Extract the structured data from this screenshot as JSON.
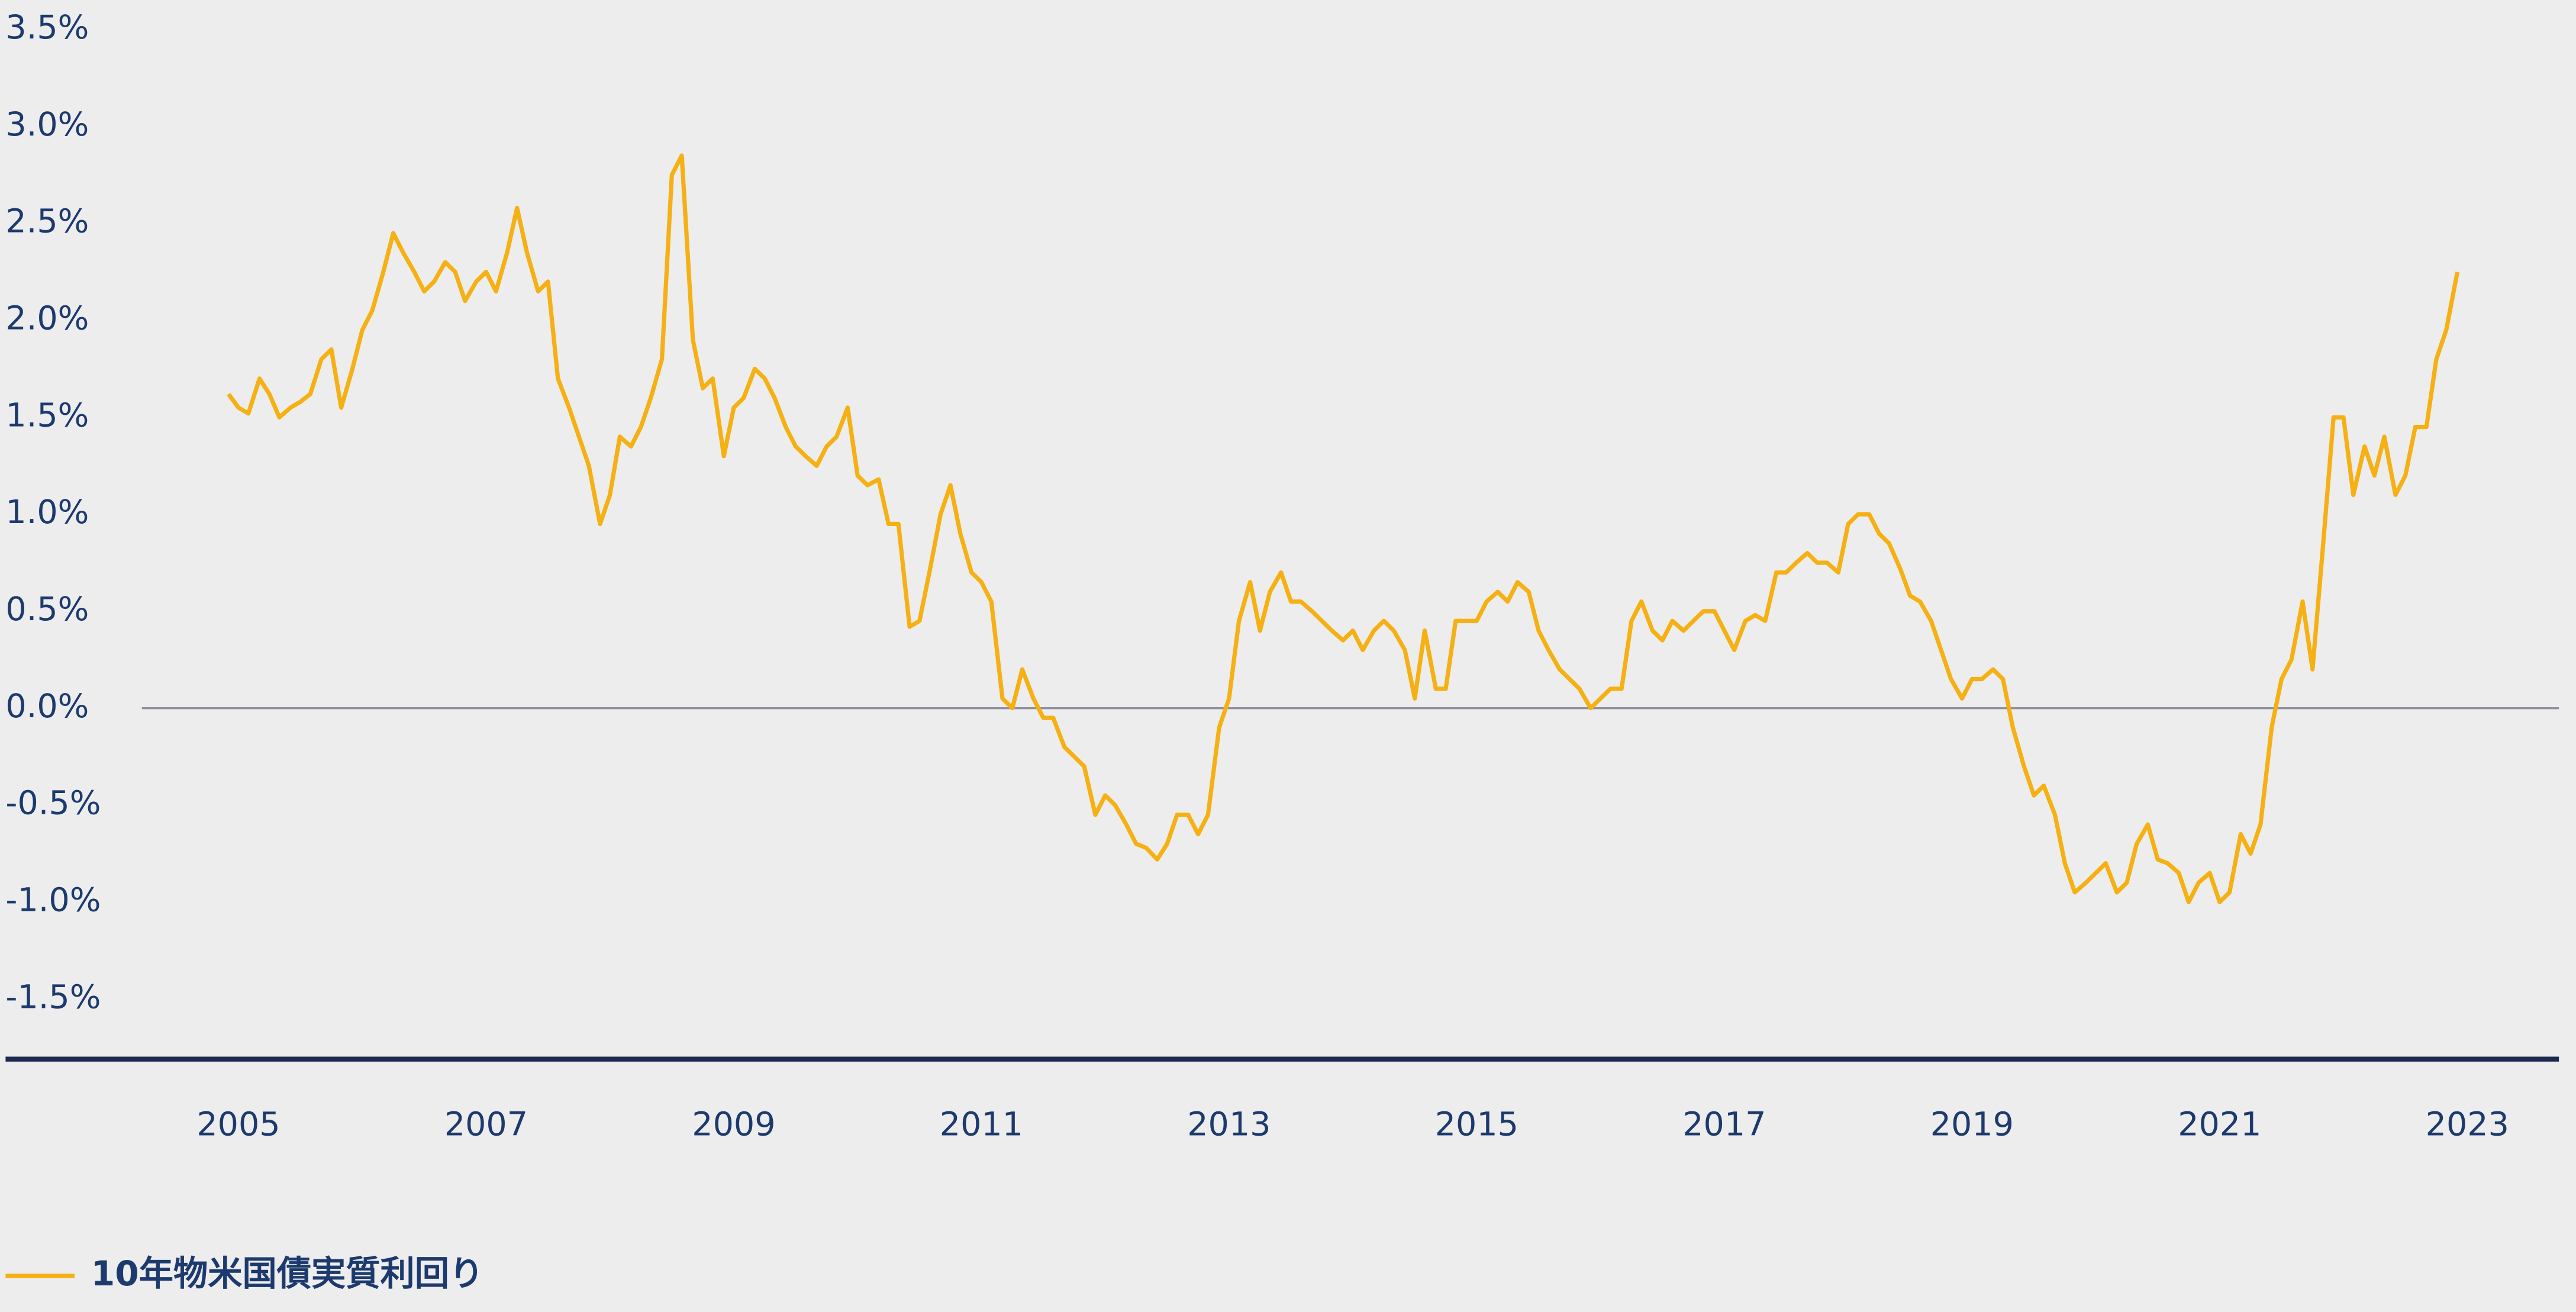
{
  "chart_data": {
    "type": "line",
    "x": [
      2004.92,
      2005.0,
      2005.08,
      2005.17,
      2005.25,
      2005.33,
      2005.42,
      2005.5,
      2005.58,
      2005.67,
      2005.75,
      2005.83,
      2005.92,
      2006.0,
      2006.08,
      2006.17,
      2006.25,
      2006.33,
      2006.42,
      2006.5,
      2006.58,
      2006.67,
      2006.75,
      2006.83,
      2006.92,
      2007.0,
      2007.08,
      2007.17,
      2007.25,
      2007.33,
      2007.42,
      2007.5,
      2007.58,
      2007.67,
      2007.75,
      2007.83,
      2007.92,
      2008.0,
      2008.08,
      2008.17,
      2008.25,
      2008.33,
      2008.42,
      2008.5,
      2008.58,
      2008.67,
      2008.75,
      2008.83,
      2008.92,
      2009.0,
      2009.08,
      2009.17,
      2009.25,
      2009.33,
      2009.42,
      2009.5,
      2009.58,
      2009.67,
      2009.75,
      2009.83,
      2009.92,
      2010.0,
      2010.08,
      2010.17,
      2010.25,
      2010.33,
      2010.42,
      2010.5,
      2010.58,
      2010.67,
      2010.75,
      2010.83,
      2010.92,
      2011.0,
      2011.08,
      2011.17,
      2011.25,
      2011.33,
      2011.42,
      2011.5,
      2011.58,
      2011.67,
      2011.75,
      2011.83,
      2011.92,
      2012.0,
      2012.08,
      2012.17,
      2012.25,
      2012.33,
      2012.42,
      2012.5,
      2012.58,
      2012.67,
      2012.75,
      2012.83,
      2012.92,
      2013.0,
      2013.08,
      2013.17,
      2013.25,
      2013.33,
      2013.42,
      2013.5,
      2013.58,
      2013.67,
      2013.75,
      2013.83,
      2013.92,
      2014.0,
      2014.08,
      2014.17,
      2014.25,
      2014.33,
      2014.42,
      2014.5,
      2014.58,
      2014.67,
      2014.75,
      2014.83,
      2014.92,
      2015.0,
      2015.08,
      2015.17,
      2015.25,
      2015.33,
      2015.42,
      2015.5,
      2015.58,
      2015.67,
      2015.75,
      2015.83,
      2015.92,
      2016.0,
      2016.08,
      2016.17,
      2016.25,
      2016.33,
      2016.42,
      2016.5,
      2016.58,
      2016.67,
      2016.75,
      2016.83,
      2016.92,
      2017.0,
      2017.08,
      2017.17,
      2017.25,
      2017.33,
      2017.42,
      2017.5,
      2017.58,
      2017.67,
      2017.75,
      2017.83,
      2017.92,
      2018.0,
      2018.08,
      2018.17,
      2018.25,
      2018.33,
      2018.42,
      2018.5,
      2018.58,
      2018.67,
      2018.75,
      2018.83,
      2018.92,
      2019.0,
      2019.08,
      2019.17,
      2019.25,
      2019.33,
      2019.42,
      2019.5,
      2019.58,
      2019.67,
      2019.75,
      2019.83,
      2019.92,
      2020.0,
      2020.08,
      2020.17,
      2020.25,
      2020.33,
      2020.42,
      2020.5,
      2020.58,
      2020.67,
      2020.75,
      2020.83,
      2020.92,
      2021.0,
      2021.08,
      2021.17,
      2021.25,
      2021.33,
      2021.42,
      2021.5,
      2021.58,
      2021.67,
      2021.75,
      2021.83,
      2021.92,
      2022.0,
      2022.08,
      2022.17,
      2022.25,
      2022.33,
      2022.42,
      2022.5,
      2022.58,
      2022.67,
      2022.75,
      2022.83,
      2022.92
    ],
    "series": [
      {
        "name": "10年物米国債実質利回り",
        "color": "#f5b014",
        "values": [
          1.62,
          1.55,
          1.52,
          1.7,
          1.62,
          1.5,
          1.55,
          1.58,
          1.62,
          1.8,
          1.85,
          1.55,
          1.75,
          1.95,
          2.05,
          2.25,
          2.45,
          2.35,
          2.25,
          2.15,
          2.2,
          2.3,
          2.25,
          2.1,
          2.2,
          2.25,
          2.15,
          2.35,
          2.58,
          2.35,
          2.15,
          2.2,
          1.7,
          1.55,
          1.4,
          1.25,
          0.95,
          1.1,
          1.4,
          1.35,
          1.45,
          1.6,
          1.8,
          2.75,
          2.85,
          1.9,
          1.65,
          1.7,
          1.3,
          1.55,
          1.6,
          1.75,
          1.7,
          1.6,
          1.45,
          1.35,
          1.3,
          1.25,
          1.35,
          1.4,
          1.55,
          1.2,
          1.15,
          1.18,
          0.95,
          0.95,
          0.42,
          0.45,
          0.7,
          1.0,
          1.15,
          0.9,
          0.7,
          0.65,
          0.55,
          0.05,
          0.0,
          0.2,
          0.05,
          -0.05,
          -0.05,
          -0.2,
          -0.25,
          -0.3,
          -0.55,
          -0.45,
          -0.5,
          -0.6,
          -0.7,
          -0.72,
          -0.78,
          -0.7,
          -0.55,
          -0.55,
          -0.65,
          -0.55,
          -0.1,
          0.05,
          0.45,
          0.65,
          0.4,
          0.6,
          0.7,
          0.55,
          0.55,
          0.5,
          0.45,
          0.4,
          0.35,
          0.4,
          0.3,
          0.4,
          0.45,
          0.4,
          0.3,
          0.05,
          0.4,
          0.1,
          0.1,
          0.45,
          0.45,
          0.45,
          0.55,
          0.6,
          0.55,
          0.65,
          0.6,
          0.4,
          0.3,
          0.2,
          0.15,
          0.1,
          0.0,
          0.05,
          0.1,
          0.1,
          0.45,
          0.55,
          0.4,
          0.35,
          0.45,
          0.4,
          0.45,
          0.5,
          0.5,
          0.4,
          0.3,
          0.45,
          0.48,
          0.45,
          0.7,
          0.7,
          0.75,
          0.8,
          0.75,
          0.75,
          0.7,
          0.95,
          1.0,
          1.0,
          0.9,
          0.85,
          0.72,
          0.58,
          0.55,
          0.45,
          0.3,
          0.15,
          0.05,
          0.15,
          0.15,
          0.2,
          0.15,
          -0.1,
          -0.3,
          -0.45,
          -0.4,
          -0.55,
          -0.8,
          -0.95,
          -0.9,
          -0.85,
          -0.8,
          -0.95,
          -0.9,
          -0.7,
          -0.6,
          -0.78,
          -0.8,
          -0.85,
          -1.0,
          -0.9,
          -0.85,
          -1.0,
          -0.95,
          -0.65,
          -0.75,
          -0.6,
          -0.1,
          0.15,
          0.25,
          0.55,
          0.2,
          0.8,
          1.5,
          1.5,
          1.1,
          1.35,
          1.2,
          1.4,
          1.1,
          1.2,
          1.45,
          1.45,
          1.8,
          1.95,
          2.25
        ]
      }
    ],
    "xlim": [
      2004.22,
      2023.74
    ],
    "xticks": [
      2005,
      2007,
      2009,
      2011,
      2013,
      2015,
      2017,
      2019,
      2021,
      2023
    ],
    "ylim": [
      -1.81,
      3.5
    ],
    "yticks": [
      {
        "value": -1.5,
        "label": "-1.5%"
      },
      {
        "value": -1.0,
        "label": "-1.0%"
      },
      {
        "value": -0.5,
        "label": "-0.5%"
      },
      {
        "value": 0,
        "label": "0.0%"
      },
      {
        "value": 0.5,
        "label": "0.5%"
      },
      {
        "value": 1.0,
        "label": "1.0%"
      },
      {
        "value": 1.5,
        "label": "1.5%"
      },
      {
        "value": 2.0,
        "label": "2.0%"
      },
      {
        "value": 2.5,
        "label": "2.5%"
      },
      {
        "value": 3.0,
        "label": "3.0%"
      },
      {
        "value": 3.5,
        "label": "3.5%"
      }
    ],
    "grid": false
  }
}
